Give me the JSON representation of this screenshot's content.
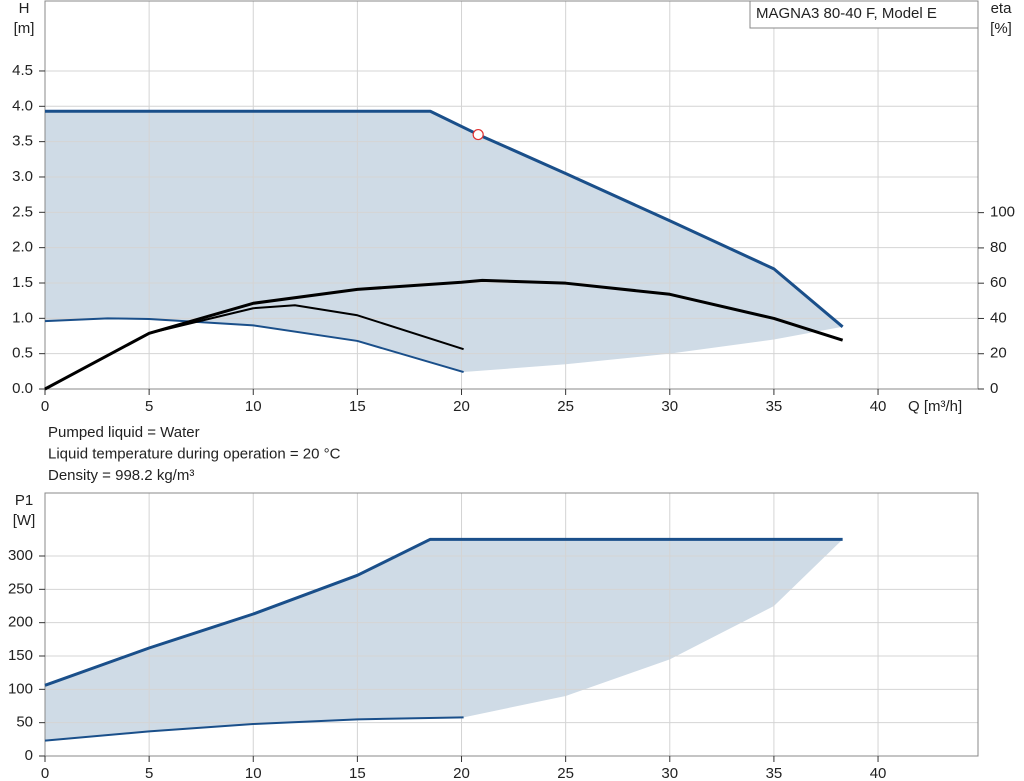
{
  "chart_data": [
    {
      "type": "line",
      "title": "MAGNA3 80-40 F, Model E",
      "y_label": [
        "H",
        "[m]"
      ],
      "y2_label": [
        "eta",
        "[%]"
      ],
      "x_label": "Q [m³/h]",
      "notes": [
        "Pumped liquid = Water",
        "Liquid temperature during operation = 20 °C",
        "Density = 998.2 kg/m³"
      ],
      "xlim": [
        0,
        44.8
      ],
      "xticks": [
        0,
        5,
        10,
        15,
        20,
        25,
        30,
        35,
        40
      ],
      "ylim": [
        0,
        5.49
      ],
      "yticks": [
        {
          "value": 0,
          "label": "0.0"
        },
        0.5,
        {
          "value": 1,
          "label": "1.0"
        },
        1.5,
        {
          "value": 2,
          "label": "2.0"
        },
        2.5,
        {
          "value": 3,
          "label": "3.0"
        },
        3.5,
        {
          "value": 4,
          "label": "4.0"
        },
        4.5
      ],
      "y2lim": [
        0,
        220
      ],
      "y2ticks": [
        0,
        20,
        40,
        60,
        80,
        100
      ],
      "grid": true,
      "area": {
        "color": "#cfdbe6",
        "x": [
          0,
          18.5,
          20.8,
          25,
          30,
          35,
          38.3,
          35,
          30,
          25,
          20.1,
          15,
          10,
          5,
          3,
          0
        ],
        "values": [
          3.93,
          3.93,
          3.6,
          3.05,
          2.38,
          1.7,
          0.88,
          0.7,
          0.5,
          0.35,
          0.24,
          0.68,
          0.9,
          0.99,
          1.0,
          0.96
        ]
      },
      "series": [
        {
          "color": "#1a4f8a",
          "width": 3,
          "x": [
            0,
            18.5,
            20.8,
            25,
            30,
            35,
            38.3
          ],
          "values": [
            3.93,
            3.93,
            3.6,
            3.05,
            2.38,
            1.7,
            0.88
          ]
        },
        {
          "color": "#1a4f8a",
          "width": 2,
          "x": [
            0,
            3,
            5,
            10,
            15,
            20.1
          ],
          "values": [
            0.96,
            1.0,
            0.99,
            0.9,
            0.68,
            0.24
          ]
        },
        {
          "color": "#000000",
          "width": 3,
          "axis": "y2",
          "x": [
            0,
            5,
            10,
            15,
            20,
            21,
            25,
            30,
            35,
            38.3
          ],
          "values": [
            0,
            31.6,
            48.6,
            56.5,
            60.5,
            61.6,
            60,
            53.7,
            40,
            27.7
          ]
        },
        {
          "color": "#000000",
          "width": 2,
          "axis": "y2",
          "x": [
            0,
            5,
            10,
            12,
            15,
            20.1
          ],
          "values": [
            0,
            31.6,
            45.8,
            47.5,
            41.8,
            22.6
          ]
        }
      ],
      "point": {
        "x": 20.8,
        "y": 3.6,
        "color": "#e03030"
      }
    },
    {
      "type": "line",
      "y_label": [
        "P1",
        "[W]"
      ],
      "xlim": [
        0,
        44.8
      ],
      "xticks": [
        0,
        5,
        10,
        15,
        20,
        25,
        30,
        35,
        40
      ],
      "ylim": [
        0,
        394.5
      ],
      "yticks": [
        0,
        50,
        100,
        150,
        200,
        250,
        300
      ],
      "grid": true,
      "area": {
        "color": "#cfdbe6",
        "x": [
          0,
          5,
          10,
          15,
          18.5,
          38.3,
          35,
          30,
          25,
          20.1,
          15,
          10,
          5,
          0
        ],
        "values": [
          106,
          162,
          213,
          271,
          325,
          325,
          225,
          145,
          90,
          58,
          55,
          48,
          37,
          23
        ]
      },
      "series": [
        {
          "color": "#1a4f8a",
          "width": 3,
          "x": [
            0,
            5,
            10,
            15,
            18.5,
            38.3
          ],
          "values": [
            106,
            162,
            213,
            271,
            325,
            325
          ]
        },
        {
          "color": "#1a4f8a",
          "width": 2,
          "x": [
            0,
            5,
            10,
            15,
            20.1
          ],
          "values": [
            23,
            37,
            48,
            55,
            58
          ]
        }
      ]
    }
  ]
}
